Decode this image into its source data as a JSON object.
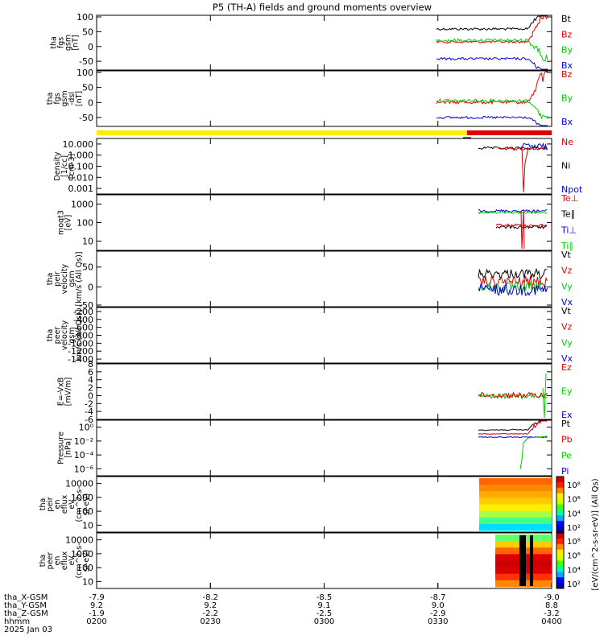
{
  "title": "P5 (TH-A) fields and ground moments overview",
  "colors": {
    "black": "#000000",
    "red": "#dd0000",
    "green": "#00cc00",
    "blue": "#0000dd",
    "yellow": "#ffee00",
    "bar_red": "#dd0000"
  },
  "chart_data": {
    "type": "line",
    "title": "P5 (TH-A) fields and ground moments overview",
    "x_range": [
      "0200",
      "0400"
    ],
    "x_ticks": [
      "0200",
      "0230",
      "0300",
      "0330",
      "0400"
    ],
    "date_label": "2025 Jan 03",
    "ephemeris": {
      "rows": [
        {
          "label": "tha_X-GSM",
          "values": [
            "-7.9",
            "-8.2",
            "-8.5",
            "-8.7",
            "-9.0"
          ]
        },
        {
          "label": "tha_Y-GSM",
          "values": [
            "9.2",
            "9.2",
            "9.1",
            "9.0",
            "8.8"
          ]
        },
        {
          "label": "tha_Z-GSM",
          "values": [
            "-1.9",
            "-2.2",
            "-2.5",
            "-2.9",
            "-3.2"
          ]
        },
        {
          "label": "hhmm",
          "values": [
            "0200",
            "0230",
            "0300",
            "0330",
            "0400"
          ]
        }
      ]
    },
    "panels": [
      {
        "name": "fgs-gsm",
        "ylabel": [
          "tha",
          "fgs",
          "gsm",
          "[nT]"
        ],
        "ylim": [
          -85,
          100
        ],
        "yticks": [
          "100",
          "50",
          "0",
          "-50"
        ],
        "legend": [
          "Bt",
          "Bz",
          "By",
          "Bx"
        ],
        "legend_colors": [
          "black",
          "red",
          "green",
          "blue"
        ]
      },
      {
        "name": "fgs-dsl",
        "ylabel": [
          "tha",
          "fgs",
          "gsm",
          "-dsl",
          "[nT]"
        ],
        "ylim": [
          -85,
          100
        ],
        "yticks": [
          "100",
          "50",
          "0",
          "-50"
        ],
        "legend": [
          "Bz",
          "By",
          "Bx"
        ],
        "legend_colors": [
          "red",
          "green",
          "blue"
        ]
      },
      {
        "name": "density",
        "ylabel": [
          "Density",
          "[1/cc]",
          "[cm-3]"
        ],
        "scale": "log",
        "yticks": [
          "10.000",
          "1.000",
          "0.100",
          "0.010",
          "0.001"
        ],
        "legend": [
          "Ne",
          "Ni",
          "Npot"
        ],
        "legend_colors": [
          "red",
          "black",
          "blue"
        ]
      },
      {
        "name": "temperature",
        "ylabel": [
          "moqt3",
          "[eV]"
        ],
        "scale": "log",
        "yticks": [
          "1000",
          "100",
          "10"
        ],
        "legend": [
          "Te⊥",
          "Te∥",
          "Ti⊥",
          "Ti∥"
        ],
        "legend_colors": [
          "red",
          "black",
          "blue",
          "green"
        ]
      },
      {
        "name": "ion-velocity",
        "ylabel": [
          "tha",
          "peir",
          "velocity",
          "gsm",
          "[km/s (All Qs)]"
        ],
        "ylim": [
          -50,
          90
        ],
        "yticks": [
          "50",
          "0",
          "-50"
        ],
        "legend": [
          "Vt",
          "Vz",
          "Vy",
          "Vx"
        ],
        "legend_colors": [
          "black",
          "red",
          "green",
          "blue"
        ]
      },
      {
        "name": "electron-velocity",
        "ylabel": [
          "tha",
          "peer",
          "velocity",
          "gsm",
          "km/s (All Qs)]"
        ],
        "ylim": [
          -1400,
          0
        ],
        "yticks": [
          "-200",
          "-400",
          "-600",
          "-800",
          "-1000",
          "-1200",
          "-1400"
        ],
        "legend": [
          "Vt",
          "Vz",
          "Vy",
          "Vx"
        ],
        "legend_colors": [
          "black",
          "red",
          "green",
          "blue"
        ]
      },
      {
        "name": "efield",
        "ylabel": [
          "E=-VxB",
          "[mV/m]"
        ],
        "ylim": [
          -6,
          8
        ],
        "yticks": [
          "8",
          "6",
          "4",
          "2",
          "0",
          "-2",
          "-4",
          "-6"
        ],
        "legend": [
          "Ez",
          "Ey",
          "Ex"
        ],
        "legend_colors": [
          "red",
          "green",
          "blue"
        ]
      },
      {
        "name": "pressure",
        "ylabel": [
          "Pressure",
          "[nPa]"
        ],
        "scale": "log",
        "yticks": [
          "10⁰",
          "10⁻²",
          "10⁻⁴",
          "10⁻⁶"
        ],
        "legend": [
          "Pt",
          "Pb",
          "Pe",
          "Pi"
        ],
        "legend_colors": [
          "black",
          "red",
          "green",
          "blue"
        ]
      },
      {
        "name": "ion-spectrogram",
        "ylabel": [
          "tha",
          "peir",
          "en",
          "eflux",
          "eV",
          "(cm^2-s-",
          "sr-eV)"
        ],
        "scale": "log",
        "yticks": [
          "10000",
          "1000",
          "100",
          "10"
        ]
      },
      {
        "name": "electron-spectrogram",
        "ylabel": [
          "tha",
          "peer",
          "en",
          "eflux",
          "eV",
          "(cm^2-s-",
          "sr-eV)"
        ],
        "scale": "log",
        "yticks": [
          "10000",
          "1000",
          "100",
          "10"
        ]
      }
    ],
    "colorbars": [
      {
        "ticks": [
          "10⁸",
          "10⁶",
          "10⁴",
          "10²"
        ]
      },
      {
        "ticks": [
          "10⁸",
          "10⁶",
          "10⁴",
          "10²"
        ]
      }
    ],
    "colorbar_label": "[eV/(cm^2-s-sr-eV)] (All Qs)"
  }
}
